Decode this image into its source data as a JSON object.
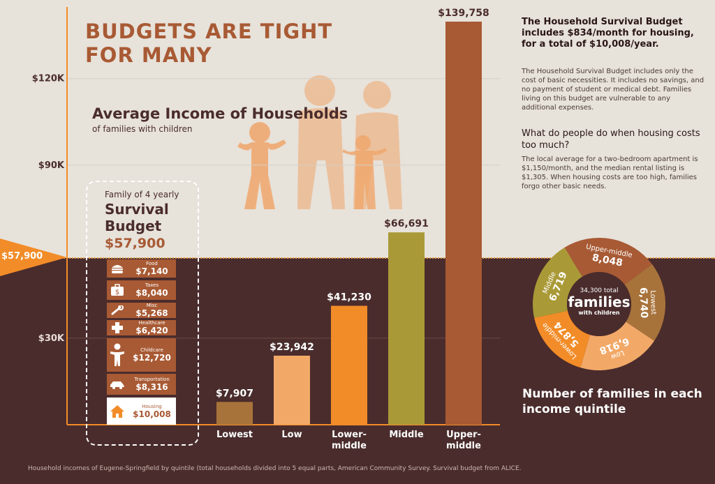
{
  "headline": "BUDGETS ARE TIGHT FOR MANY",
  "chart_data": {
    "type": "bar",
    "title": "Average Income of Households",
    "subtitle": "of families with children",
    "categories": [
      "Lowest",
      "Low",
      "Lower-middle",
      "Middle",
      "Upper-middle"
    ],
    "values": [
      7907,
      23942,
      41230,
      66691,
      139758
    ],
    "value_labels": [
      "$7,907",
      "$23,942",
      "$41,230",
      "$66,691",
      "$139,758"
    ],
    "colors": [
      "#a8733b",
      "#f2a968",
      "#f28c28",
      "#aa9a37",
      "#a85a34"
    ],
    "y_ticks": [
      {
        "value": 30000,
        "label": "$30K"
      },
      {
        "value": 90000,
        "label": "$90K"
      },
      {
        "value": 120000,
        "label": "$120K"
      }
    ],
    "survival_line": {
      "value": 57900,
      "label": "$57,900"
    },
    "grid": true
  },
  "survival_budget": {
    "heading_small": "Family of 4 yearly",
    "heading_big": "Survival Budget",
    "total": "$57,900",
    "items": [
      {
        "name": "Food",
        "value": "$7,140",
        "icon": "burger-icon"
      },
      {
        "name": "Taxes",
        "value": "$8,040",
        "icon": "briefcase-dollar-icon"
      },
      {
        "name": "Misc",
        "value": "$5,268",
        "icon": "wrench-icon"
      },
      {
        "name": "Healthcare",
        "value": "$6,420",
        "icon": "medical-cross-icon"
      },
      {
        "name": "Childcare",
        "value": "$12,720",
        "icon": "child-icon"
      },
      {
        "name": "Transportation",
        "value": "$8,316",
        "icon": "car-icon"
      },
      {
        "name": "Housing",
        "value": "$10,008",
        "icon": "house-icon"
      }
    ]
  },
  "right_panel": {
    "headline": "The Household Survival Budget includes $834/month for housing, for a total of $10,008/year.",
    "para1": "The Household Survival Budget includes only the cost of basic necessities. It includes no savings, and no payment of student or medical debt. Families living on this budget are vulnerable to any additional expenses.",
    "question": "What do people do when housing costs too much?",
    "para2": "The local average for a two-bedroom apartment is $1,150/month, and the median rental listing is $1,305. When housing costs are too high, families forgo other basic needs."
  },
  "donut": {
    "center_line1": "34,300 total",
    "center_line2": "families",
    "center_line3": "with children",
    "caption": "Number of families in each income quintile",
    "segments": [
      {
        "name": "Upper-middle",
        "value": 8048,
        "label": "8,048",
        "color": "#a85a34"
      },
      {
        "name": "Lowest",
        "value": 6740,
        "label": "6,740",
        "color": "#a8733b"
      },
      {
        "name": "Low",
        "value": 6918,
        "label": "6,918",
        "color": "#f2a968"
      },
      {
        "name": "Lower-middle",
        "value": 5874,
        "label": "5,874",
        "color": "#f28c28"
      },
      {
        "name": "Middle",
        "value": 6719,
        "label": "6,719",
        "color": "#aa9a37"
      }
    ]
  },
  "footnote": "Household incomes of Eugene-Springfield by quintile (total households divided into 5 equal parts, American Community Survey. Survival budget from ALICE."
}
